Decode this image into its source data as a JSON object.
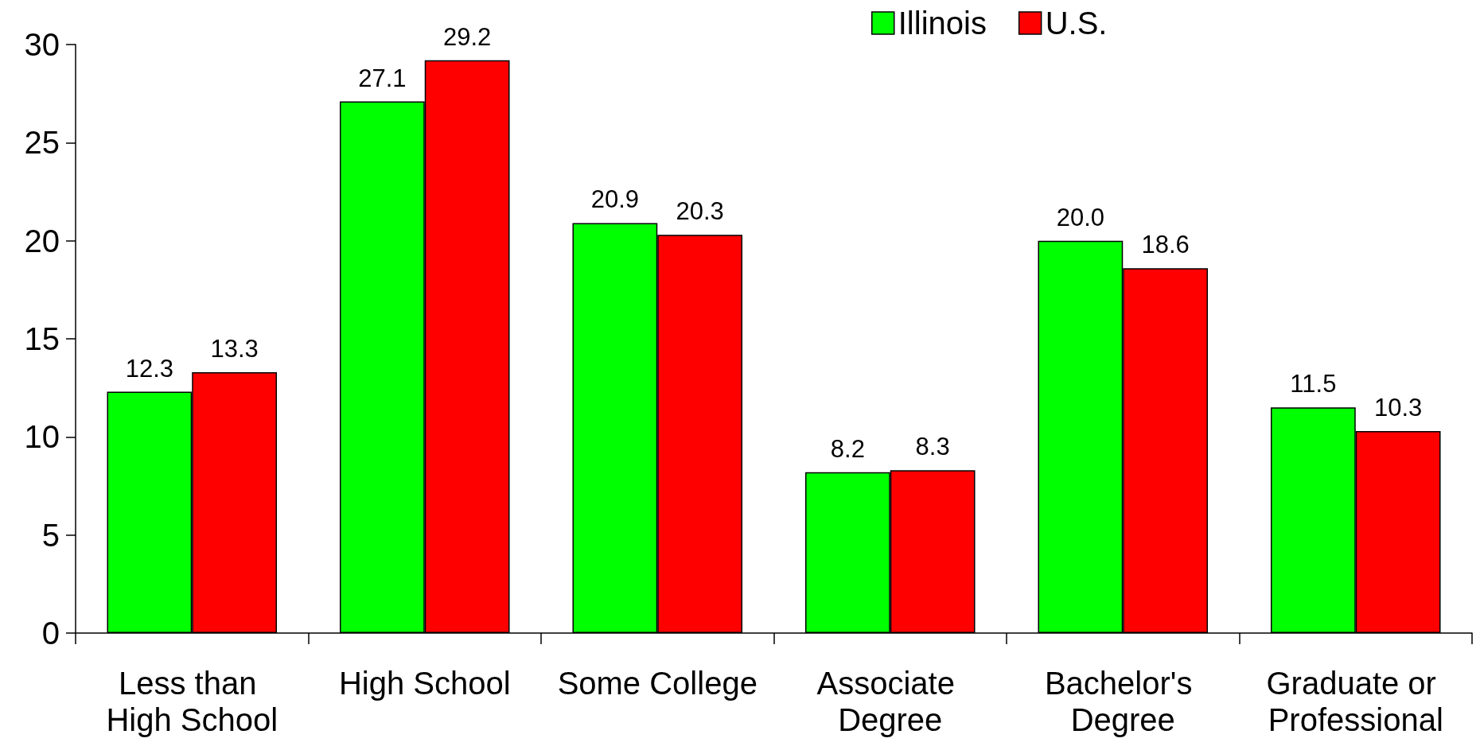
{
  "chart_data": {
    "type": "bar",
    "categories": [
      "Less than High School",
      "High School",
      "Some College",
      "Associate Degree",
      "Bachelor's Degree",
      "Graduate or Professional"
    ],
    "series": [
      {
        "name": "Illinois",
        "color": "#00ff00",
        "values": [
          12.3,
          27.1,
          20.9,
          8.2,
          20.0,
          11.5
        ],
        "value_labels": [
          "12.3",
          "27.1",
          "20.9",
          "8.2",
          "20.0",
          "11.5"
        ]
      },
      {
        "name": "U.S.",
        "color": "#ff0000",
        "values": [
          13.3,
          29.2,
          20.3,
          8.3,
          18.6,
          10.3
        ],
        "value_labels": [
          "13.3",
          "29.2",
          "20.3",
          "8.3",
          "18.6",
          "10.3"
        ]
      }
    ],
    "ylim": [
      0,
      30
    ],
    "yticks": [
      0,
      5,
      10,
      15,
      20,
      25,
      30
    ],
    "grid": false,
    "legend": "top"
  }
}
